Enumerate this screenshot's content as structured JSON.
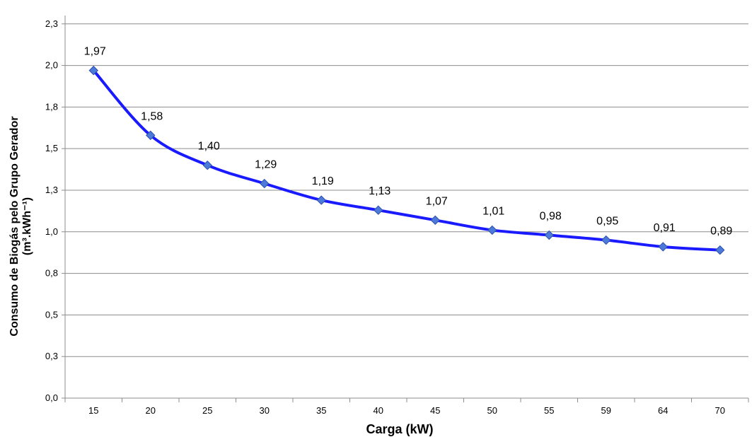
{
  "chart_data": {
    "type": "line",
    "xlabel": "Carga (kW)",
    "ylabel_line1": "Consumo de Biogás pelo Grupo Gerador",
    "ylabel_line2": "(m³.kWh⁻¹)",
    "categories": [
      "15",
      "20",
      "25",
      "30",
      "35",
      "40",
      "45",
      "50",
      "55",
      "59",
      "64",
      "70"
    ],
    "values": [
      1.97,
      1.58,
      1.4,
      1.29,
      1.19,
      1.13,
      1.07,
      1.01,
      0.98,
      0.95,
      0.91,
      0.89
    ],
    "data_labels": [
      "1,97",
      "1,58",
      "1,40",
      "1,29",
      "1,19",
      "1,13",
      "1,07",
      "1,01",
      "0,98",
      "0,95",
      "0,91",
      "0,89"
    ],
    "ylim": [
      0,
      2.3
    ],
    "yticks": [
      0.0,
      0.25,
      0.5,
      0.75,
      1.0,
      1.25,
      1.5,
      1.75,
      2.0,
      2.25
    ],
    "ytick_labels": [
      "0,0",
      "0,3",
      "0,5",
      "0,8",
      "1,0",
      "1,3",
      "1,5",
      "1,8",
      "2,0",
      "2,3"
    ],
    "grid": true,
    "legend": "none",
    "line_color": "#1a1aff",
    "marker_color": "#4d79d9"
  }
}
